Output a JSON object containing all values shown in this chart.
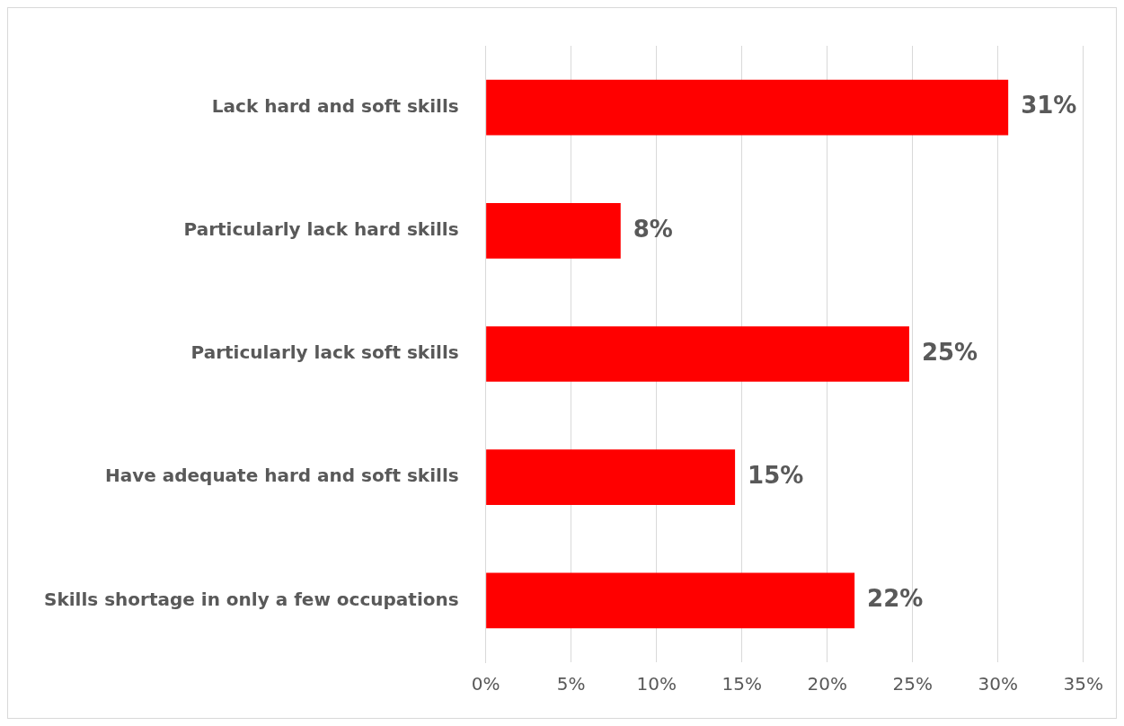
{
  "chart_data": {
    "type": "bar",
    "orientation": "horizontal",
    "categories": [
      "Lack hard and soft skills",
      "Particularly lack hard skills",
      "Particularly lack soft skills",
      "Have adequate hard and soft skills",
      "Skills shortage in only a few occupations"
    ],
    "values": [
      30.6,
      7.9,
      24.8,
      14.6,
      21.6
    ],
    "value_labels": [
      "31%",
      "8%",
      "25%",
      "15%",
      "22%"
    ],
    "color": "#ff0000",
    "xlim": [
      0,
      35
    ],
    "xticks": [
      {
        "value": 0,
        "label": "0%"
      },
      {
        "value": 5,
        "label": "5%"
      },
      {
        "value": 10,
        "label": "10%"
      },
      {
        "value": 15,
        "label": "15%"
      },
      {
        "value": 20,
        "label": "20%"
      },
      {
        "value": 25,
        "label": "25%"
      },
      {
        "value": 30,
        "label": "30%"
      },
      {
        "value": 35,
        "label": "35%"
      }
    ],
    "grid": "x",
    "legend": false
  }
}
